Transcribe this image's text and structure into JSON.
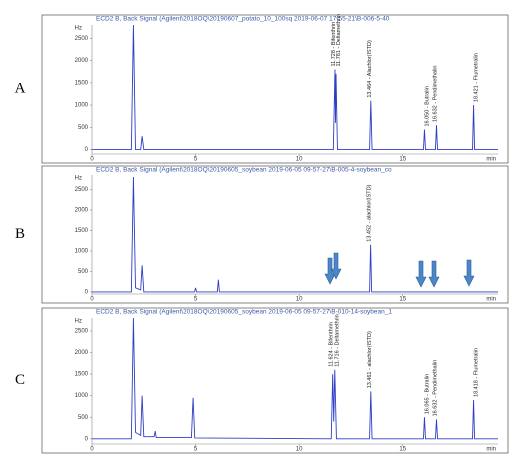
{
  "chart_data": [
    {
      "type": "line",
      "label": "A",
      "title": "ECD2 B, Back Signal (Agilent\\2018OQ\\20190607_potato_10_100sq 2019-06-07 17-55-21\\B-006-5-40",
      "ylabel": "Hz",
      "xlabel": "min",
      "color": "#2f3fc4",
      "xlim": [
        0,
        19.6
      ],
      "ylim": [
        -100,
        2800
      ],
      "xticks": [
        0,
        5,
        10,
        15
      ],
      "yticks": [
        0,
        500,
        1000,
        1500,
        2000,
        2500
      ],
      "x": [
        0,
        1.9,
        2.0,
        2.1,
        2.35,
        2.42,
        2.5,
        11.65,
        11.73,
        11.755,
        11.78,
        11.85,
        13.4,
        13.46,
        13.52,
        16.0,
        16.05,
        16.1,
        16.58,
        16.63,
        16.68,
        18.37,
        18.42,
        18.47,
        19.6
      ],
      "values": [
        0,
        0,
        2800,
        0,
        0,
        300,
        0,
        0,
        1800,
        600,
        1700,
        0,
        0,
        1100,
        0,
        0,
        450,
        0,
        0,
        550,
        0,
        0,
        1000,
        0,
        0
      ],
      "annotations": [
        {
          "x": 11.728,
          "text": "11.728 - Bifenthrin"
        },
        {
          "x": 11.781,
          "text": "11.781 - Deltamethrin"
        },
        {
          "x": 13.464,
          "text": "13.464 - Alachlor(ISTD)"
        },
        {
          "x": 16.05,
          "text": "16.050 - Butralin"
        },
        {
          "x": 16.632,
          "text": "16.632 - Pendimethalin"
        },
        {
          "x": 18.421,
          "text": "18.421 - Flumetralin"
        }
      ]
    },
    {
      "type": "line",
      "label": "B",
      "title": "ECD2 B, Back Signal (Agilent\\2018OQ\\20190605_soybean 2019-06-05 09-57-27\\B-005-4-soybean_co",
      "ylabel": "Hz",
      "xlabel": "min",
      "color": "#2f3fc4",
      "xlim": [
        0,
        19.6
      ],
      "ylim": [
        -50,
        2850
      ],
      "xticks": [
        0,
        5,
        10,
        15
      ],
      "yticks": [
        0,
        500,
        1000,
        1500,
        2000,
        2500
      ],
      "x": [
        0,
        1.9,
        2.0,
        2.1,
        2.35,
        2.42,
        2.5,
        4.95,
        5.0,
        5.05,
        6.05,
        6.1,
        6.15,
        13.4,
        13.45,
        13.5,
        19.6
      ],
      "values": [
        0,
        0,
        2800,
        100,
        50,
        650,
        0,
        0,
        100,
        0,
        0,
        300,
        0,
        0,
        1150,
        0,
        0
      ],
      "annotations": [
        {
          "x": 13.452,
          "text": "13.452 - alachlor(ISTD)"
        }
      ]
    },
    {
      "type": "line",
      "label": "C",
      "title": "ECD2 B, Back Signal (Agilent\\2018OQ\\20190605_soybean 2019-06-05 09-57-27\\B-010-14-soybean_1",
      "ylabel": "Hz",
      "xlabel": "min",
      "color": "#2f3fc4",
      "xlim": [
        0,
        19.6
      ],
      "ylim": [
        -120,
        2800
      ],
      "xticks": [
        0,
        5,
        10,
        15
      ],
      "yticks": [
        0,
        500,
        1000,
        1500,
        2000,
        2500
      ],
      "x": [
        0,
        1.9,
        2.0,
        2.1,
        2.35,
        2.42,
        2.5,
        3.0,
        3.05,
        3.1,
        4.8,
        4.88,
        4.96,
        11.55,
        11.62,
        11.67,
        11.72,
        11.8,
        13.4,
        13.46,
        13.52,
        16.0,
        16.05,
        16.1,
        16.58,
        16.63,
        16.68,
        18.37,
        18.42,
        18.47,
        19.6
      ],
      "values": [
        0,
        0,
        2800,
        150,
        80,
        1000,
        50,
        50,
        180,
        30,
        30,
        950,
        20,
        0,
        1500,
        400,
        1600,
        0,
        0,
        1100,
        0,
        0,
        500,
        0,
        0,
        450,
        0,
        0,
        900,
        0,
        0
      ],
      "annotations": [
        {
          "x": 11.624,
          "text": "11.624 - Bifenthrin"
        },
        {
          "x": 11.716,
          "text": "11.716 - Deltamethrin"
        },
        {
          "x": 13.461,
          "text": "13.461 - alachlor(ISTD)"
        },
        {
          "x": 16.065,
          "text": "16.065 - Butralin"
        },
        {
          "x": 16.632,
          "text": "16.632 - Pendimethalin"
        },
        {
          "x": 18.418,
          "text": "18.418 - Flumetralin"
        }
      ]
    }
  ]
}
